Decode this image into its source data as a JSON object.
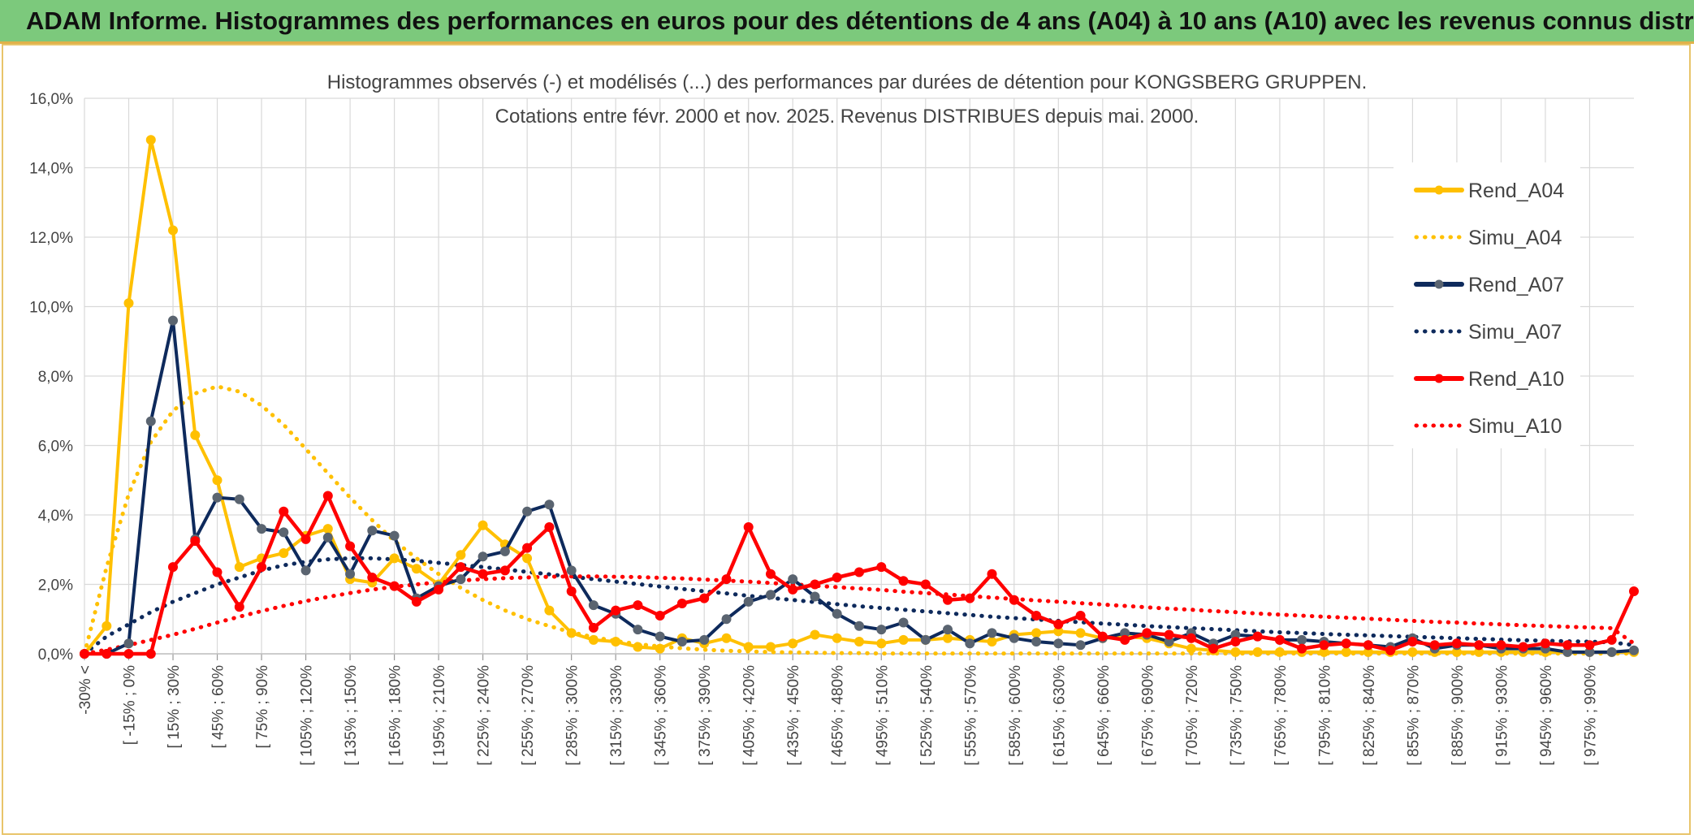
{
  "banner": {
    "title": "ADAM Informe. Histogrammes des performances en euros pour des détentions de 4 ans (A04) à 10 ans (A10) avec les revenus connus distribués"
  },
  "colors": {
    "banner_bg": "#7cc97c",
    "a04": "#ffc000",
    "a07": "#0e2a5c",
    "a07_marker": "#5a6470",
    "a10": "#ff0000",
    "grid": "#d9d9d9"
  },
  "chart_data": {
    "type": "line",
    "title": "Histogrammes observés (-) et modélisés (...) des performances par durées de détention pour KONGSBERG GRUPPEN.",
    "subtitle": "Cotations entre févr. 2000 et nov. 2025. Revenus DISTRIBUES depuis mai. 2000.",
    "xlabel": "",
    "ylabel": "",
    "ylim": [
      0,
      16
    ],
    "y_ticks": [
      "0,0%",
      "2,0%",
      "4,0%",
      "6,0%",
      "8,0%",
      "10,0%",
      "12,0%",
      "14,0%",
      "16,0%"
    ],
    "grid": true,
    "legend_position": "top-right",
    "x_labels": [
      "-30% <",
      "[ -15% ; 0%",
      "[ 15% ; 30%",
      "[ 45% ; 60%",
      "[ 75% ; 90%",
      "[ 105% ; 120%",
      "[ 135% ; 150%",
      "[ 165% ; 180%",
      "[ 195% ; 210%",
      "[ 225% ; 240%",
      "[ 255% ; 270%",
      "[ 285% ; 300%",
      "[ 315% ; 330%",
      "[ 345% ; 360%",
      "[ 375% ; 390%",
      "[ 405% ; 420%",
      "[ 435% ; 450%",
      "[ 465% ; 480%",
      "[ 495% ; 510%",
      "[ 525% ; 540%",
      "[ 555% ; 570%",
      "[ 585% ; 600%",
      "[ 615% ; 630%",
      "[ 645% ; 660%",
      "[ 675% ; 690%",
      "[ 705% ; 720%",
      "[ 735% ; 750%",
      "[ 765% ; 780%",
      "[ 795% ; 810%",
      "[ 825% ; 840%",
      "[ 855% ; 870%",
      "[ 885% ; 900%",
      "[ 915% ; 930%",
      "[ 945% ; 960%",
      "[ 975% ; 990%"
    ],
    "series": [
      {
        "name": "Rend_A04",
        "style": "solid",
        "values": [
          0,
          0.8,
          10.1,
          14.8,
          12.2,
          6.3,
          5.0,
          2.5,
          2.75,
          2.9,
          3.4,
          3.6,
          2.15,
          2.05,
          2.75,
          2.45,
          2.0,
          2.85,
          3.7,
          3.15,
          2.75,
          1.25,
          0.6,
          0.4,
          0.35,
          0.2,
          0.15,
          0.45,
          0.3,
          0.45,
          0.2,
          0.2,
          0.3,
          0.55,
          0.45,
          0.35,
          0.3,
          0.4,
          0.4,
          0.45,
          0.4,
          0.35,
          0.55,
          0.6,
          0.65,
          0.6,
          0.45,
          0.5,
          0.45,
          0.3,
          0.15,
          0.1,
          0.05,
          0.05,
          0.05,
          0.05,
          0.05,
          0.05,
          0.05,
          0.05,
          0.05,
          0.05,
          0.05,
          0.05,
          0.05,
          0.05,
          0.05,
          0.05,
          0.05,
          0.05,
          0.05
        ]
      },
      {
        "name": "Simu_A04",
        "style": "dotted",
        "values": [
          0.0,
          2.5,
          4.6,
          6.1,
          7.0,
          7.5,
          7.7,
          7.55,
          7.15,
          6.6,
          5.9,
          5.2,
          4.5,
          3.85,
          3.25,
          2.75,
          2.3,
          1.9,
          1.55,
          1.25,
          1.0,
          0.8,
          0.62,
          0.48,
          0.37,
          0.28,
          0.21,
          0.16,
          0.12,
          0.09,
          0.07,
          0.05,
          0.04,
          0.03,
          0.02,
          0.02,
          0.01,
          0.01,
          0.01,
          0.01,
          0.01,
          0.01,
          0.01,
          0.01,
          0.01,
          0.01,
          0.01,
          0.01,
          0.01,
          0.01,
          0.01,
          0.01,
          0.01,
          0.01,
          0.01,
          0.01,
          0.01,
          0.01,
          0.01,
          0.01,
          0.01,
          0.01,
          0.01,
          0.01,
          0.01,
          0.01,
          0.01,
          0.01,
          0.01,
          0.01,
          0.01
        ]
      },
      {
        "name": "Rend_A07",
        "style": "solid",
        "values": [
          0,
          0,
          0.3,
          6.7,
          9.6,
          3.3,
          4.5,
          4.45,
          3.6,
          3.5,
          2.4,
          3.35,
          2.3,
          3.55,
          3.4,
          1.6,
          1.95,
          2.15,
          2.8,
          2.95,
          4.1,
          4.3,
          2.4,
          1.4,
          1.15,
          0.7,
          0.5,
          0.35,
          0.4,
          1.0,
          1.5,
          1.7,
          2.15,
          1.65,
          1.15,
          0.8,
          0.7,
          0.9,
          0.4,
          0.7,
          0.3,
          0.6,
          0.45,
          0.35,
          0.3,
          0.25,
          0.45,
          0.6,
          0.55,
          0.35,
          0.6,
          0.3,
          0.55,
          0.5,
          0.4,
          0.4,
          0.35,
          0.3,
          0.25,
          0.2,
          0.45,
          0.15,
          0.25,
          0.25,
          0.15,
          0.15,
          0.15,
          0.05,
          0.05,
          0.05,
          0.1
        ]
      },
      {
        "name": "Simu_A07",
        "style": "dotted",
        "values": [
          0.0,
          0.5,
          0.85,
          1.2,
          1.5,
          1.75,
          2.0,
          2.2,
          2.4,
          2.55,
          2.65,
          2.72,
          2.75,
          2.75,
          2.72,
          2.68,
          2.62,
          2.56,
          2.5,
          2.43,
          2.36,
          2.29,
          2.22,
          2.15,
          2.08,
          2.01,
          1.94,
          1.87,
          1.8,
          1.74,
          1.67,
          1.61,
          1.55,
          1.49,
          1.43,
          1.37,
          1.32,
          1.27,
          1.22,
          1.17,
          1.12,
          1.07,
          1.03,
          0.99,
          0.95,
          0.91,
          0.87,
          0.84,
          0.8,
          0.77,
          0.74,
          0.71,
          0.68,
          0.65,
          0.62,
          0.6,
          0.57,
          0.55,
          0.53,
          0.51,
          0.49,
          0.47,
          0.45,
          0.43,
          0.41,
          0.39,
          0.38,
          0.36,
          0.35,
          0.33,
          0.25
        ]
      },
      {
        "name": "Rend_A10",
        "style": "solid",
        "values": [
          0,
          0,
          0,
          0,
          2.5,
          3.25,
          2.35,
          1.35,
          2.5,
          4.1,
          3.3,
          4.55,
          3.1,
          2.2,
          1.95,
          1.5,
          1.85,
          2.5,
          2.3,
          2.4,
          3.05,
          3.65,
          1.8,
          0.75,
          1.25,
          1.4,
          1.1,
          1.45,
          1.6,
          2.15,
          3.65,
          2.3,
          1.85,
          2.0,
          2.2,
          2.35,
          2.5,
          2.1,
          2.0,
          1.55,
          1.6,
          2.3,
          1.55,
          1.1,
          0.85,
          1.1,
          0.5,
          0.4,
          0.6,
          0.55,
          0.45,
          0.15,
          0.35,
          0.5,
          0.4,
          0.15,
          0.25,
          0.3,
          0.25,
          0.1,
          0.35,
          0.25,
          0.3,
          0.25,
          0.25,
          0.2,
          0.3,
          0.25,
          0.25,
          0.4,
          1.8
        ]
      },
      {
        "name": "Simu_A10",
        "style": "dotted",
        "values": [
          0.0,
          0.12,
          0.25,
          0.4,
          0.55,
          0.72,
          0.9,
          1.07,
          1.23,
          1.38,
          1.52,
          1.64,
          1.75,
          1.85,
          1.93,
          2.0,
          2.06,
          2.11,
          2.15,
          2.18,
          2.2,
          2.22,
          2.23,
          2.23,
          2.22,
          2.21,
          2.19,
          2.17,
          2.14,
          2.11,
          2.08,
          2.04,
          2.0,
          1.96,
          1.92,
          1.88,
          1.84,
          1.79,
          1.75,
          1.71,
          1.66,
          1.62,
          1.58,
          1.54,
          1.5,
          1.46,
          1.42,
          1.38,
          1.34,
          1.3,
          1.27,
          1.23,
          1.2,
          1.16,
          1.13,
          1.1,
          1.07,
          1.04,
          1.01,
          0.98,
          0.95,
          0.92,
          0.9,
          0.87,
          0.85,
          0.82,
          0.8,
          0.78,
          0.76,
          0.74,
          0.3
        ]
      }
    ]
  }
}
